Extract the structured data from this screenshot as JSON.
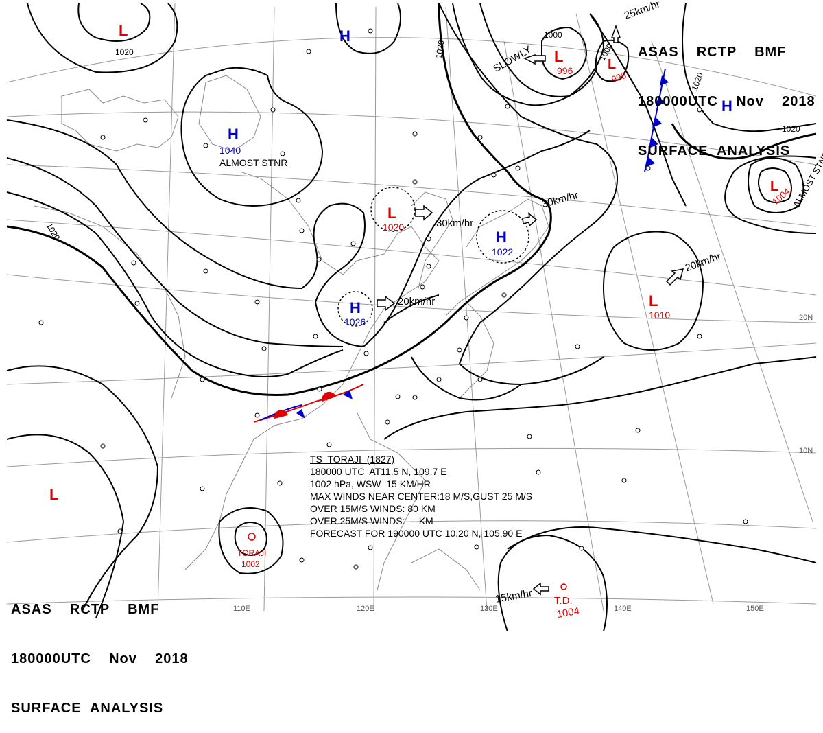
{
  "header_top": {
    "line1": "ASAS    RCTP    BMF",
    "line2": "180000UTC    Nov    2018",
    "line3": "SURFACE  ANALYSIS"
  },
  "header_bottom": {
    "line1": "ASAS    RCTP    BMF",
    "line2": "180000UTC    Nov    2018",
    "line3": "SURFACE  ANALYSIS"
  },
  "storm_info": {
    "title": "TS  TORAJI  (1827)",
    "position": "180000 UTC  AT11.5 N, 109.7 E",
    "pressure_motion": "1002 hPa, WSW  15 KM/HR",
    "max_winds": "MAX WINDS NEAR CENTER:18 M/S,GUST 25 M/S",
    "r15": "OVER 15M/S WINDS: 80 KM",
    "r25": "OVER 25M/S WINDS:  -  KM",
    "forecast": "FORECAST FOR 190000 UTC 10.20 N, 105.90 E"
  },
  "pressure_centers": [
    {
      "type": "L",
      "value": "",
      "color": "#e00000"
    },
    {
      "type": "H",
      "value": "",
      "color": "#0000cc"
    },
    {
      "type": "H",
      "value": "1040",
      "color": "#0000cc",
      "note": "ALMOST STNR"
    },
    {
      "type": "L",
      "value": "996",
      "color": "#e00000"
    },
    {
      "type": "L",
      "value": "998",
      "color": "#e00000"
    },
    {
      "type": "H",
      "value": "",
      "color": "#0000cc"
    },
    {
      "type": "L",
      "value": "1004",
      "color": "#e00000",
      "note": "ALMOST STNR"
    },
    {
      "type": "L",
      "value": "1020",
      "color": "#e00000"
    },
    {
      "type": "H",
      "value": "1022",
      "color": "#0000cc"
    },
    {
      "type": "H",
      "value": "1026",
      "color": "#0000cc"
    },
    {
      "type": "L",
      "value": "1010",
      "color": "#e00000"
    },
    {
      "type": "L",
      "value": "",
      "color": "#e00000"
    },
    {
      "type": "T.D.",
      "value": "1004",
      "color": "#e00000"
    },
    {
      "type": "TORAJI",
      "value": "1002",
      "color": "#e00000"
    }
  ],
  "motion_labels": {
    "slowly": "SLOWLY",
    "ne_25": "25km/hr",
    "l1020": "30km/hr",
    "h1022": "30km/hr",
    "h1026": "20km/hr",
    "l1010": "20km/hr",
    "td": "15km/hr"
  },
  "isobar_labels": [
    "1020",
    "1020",
    "1020",
    "1020",
    "1020",
    "1000",
    "1000"
  ],
  "graticule_labels": [
    "110E",
    "120E",
    "130E",
    "140E",
    "150E",
    "20N",
    "10N"
  ],
  "colors": {
    "low": "#e00000",
    "high": "#0000cc",
    "warm_front": "#e00000",
    "cold_front": "#0000cc"
  }
}
